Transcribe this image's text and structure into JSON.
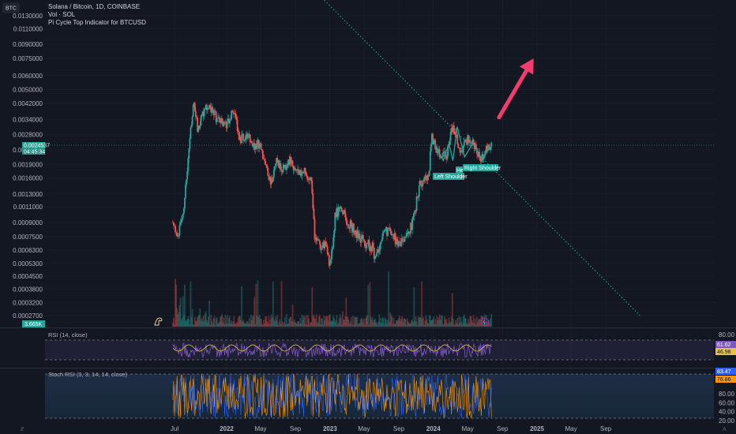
{
  "symbol_badge": "BTC",
  "legend": {
    "line1": "Solana / Bitcoin, 1D, COINBASE",
    "line2": "Vol · SOL",
    "line3": "Pi Cycle Top Indicator for BTCUSD"
  },
  "price_badges": {
    "current_price": "0.0024537",
    "countdown": "04:45:34",
    "volume": "3.665K"
  },
  "rsi_pane": {
    "title": "RSI (14, close)",
    "value_rsi": "61.62",
    "value_ma": "46.98",
    "colors": {
      "rsi": "#7e57c2",
      "ma": "#e6c050"
    }
  },
  "stoch_pane": {
    "title": "Stoch RSI (3, 3, 14, 14, close)",
    "value_k": "83.47",
    "value_d": "76.86",
    "colors": {
      "k": "#2962ff",
      "d": "#ff9800"
    }
  },
  "pattern_labels": {
    "left": "Left Shoulder",
    "head": "He",
    "right": "Right Shoulder"
  },
  "colors": {
    "background": "#131722",
    "up": "#26a69a",
    "down": "#ef5350",
    "trendline": "#26a69a",
    "arrow": "#f23c6e",
    "pattern": "#26a69a",
    "grid": "#1e222d"
  },
  "chart_data": {
    "type": "candlestick",
    "title": "Solana / Bitcoin, 1D, COINBASE",
    "y_scale": "log",
    "y_ticks": [
      "0.0130000",
      "0.0110000",
      "0.0090000",
      "0.0075000",
      "0.0060000",
      "0.0050000",
      "0.0042000",
      "0.0034000",
      "0.0028000",
      "0.0023000",
      "0.0019000",
      "0.0016000",
      "0.0013000",
      "0.0011000",
      "0.0009000",
      "0.0007500",
      "0.0006300",
      "0.0005300",
      "0.0004500",
      "0.0003800",
      "0.0003200",
      "0.0002700"
    ],
    "x_ticks": [
      "Jul",
      "2022",
      "May",
      "Sep",
      "2023",
      "May",
      "Sep",
      "2024",
      "May",
      "Sep",
      "2025",
      "May",
      "Sep"
    ],
    "price_path": [
      [
        "2021-06-25",
        0.0009
      ],
      [
        "2021-07-15",
        0.00075
      ],
      [
        "2021-08-05",
        0.0012
      ],
      [
        "2021-08-25",
        0.0028
      ],
      [
        "2021-09-07",
        0.0044
      ],
      [
        "2021-09-20",
        0.003
      ],
      [
        "2021-10-10",
        0.0038
      ],
      [
        "2021-11-05",
        0.004
      ],
      [
        "2021-12-01",
        0.0034
      ],
      [
        "2022-01-01",
        0.0032
      ],
      [
        "2022-01-25",
        0.004
      ],
      [
        "2022-02-15",
        0.0026
      ],
      [
        "2022-03-20",
        0.0028
      ],
      [
        "2022-04-10",
        0.0023
      ],
      [
        "2022-04-30",
        0.0026
      ],
      [
        "2022-05-15",
        0.0019
      ],
      [
        "2022-06-10",
        0.0015
      ],
      [
        "2022-06-25",
        0.002
      ],
      [
        "2022-07-20",
        0.0018
      ],
      [
        "2022-08-15",
        0.002
      ],
      [
        "2022-09-10",
        0.0017
      ],
      [
        "2022-10-05",
        0.0017
      ],
      [
        "2022-10-28",
        0.0016
      ],
      [
        "2022-11-09",
        0.00072
      ],
      [
        "2022-11-25",
        0.00068
      ],
      [
        "2022-12-20",
        0.00065
      ],
      [
        "2023-01-01",
        0.0005
      ],
      [
        "2023-01-20",
        0.001
      ],
      [
        "2023-02-10",
        0.0011
      ],
      [
        "2023-03-05",
        0.0009
      ],
      [
        "2023-04-01",
        0.0008
      ],
      [
        "2023-05-01",
        0.0007
      ],
      [
        "2023-06-01",
        0.00065
      ],
      [
        "2023-06-12",
        0.00055
      ],
      [
        "2023-07-10",
        0.0008
      ],
      [
        "2023-08-05",
        0.00078
      ],
      [
        "2023-09-01",
        0.00068
      ],
      [
        "2023-09-20",
        0.0007
      ],
      [
        "2023-10-20",
        0.0009
      ],
      [
        "2023-11-15",
        0.0015
      ],
      [
        "2023-12-15",
        0.0016
      ],
      [
        "2023-12-25",
        0.0027
      ],
      [
        "2024-01-20",
        0.0022
      ],
      [
        "2024-02-15",
        0.0021
      ],
      [
        "2024-03-10",
        0.0031
      ],
      [
        "2024-04-05",
        0.0022
      ],
      [
        "2024-05-01",
        0.0027
      ],
      [
        "2024-06-01",
        0.0024
      ],
      [
        "2024-06-15",
        0.002
      ],
      [
        "2024-07-05",
        0.0023
      ],
      [
        "2024-07-25",
        0.00245
      ]
    ],
    "trendline": [
      [
        "2022-10-10",
        0.02
      ],
      [
        "2025-12-31",
        0.00027
      ]
    ],
    "arrow": {
      "from": [
        "2024-08-20",
        0.0035
      ],
      "to": [
        "2024-12-20",
        0.0075
      ]
    },
    "pattern_points": [
      [
        "2023-12-25",
        0.0027
      ],
      [
        "2024-02-05",
        0.002
      ],
      [
        "2024-02-25",
        0.0025
      ],
      [
        "2024-03-10",
        0.002
      ],
      [
        "2024-03-25",
        0.0031
      ],
      [
        "2024-04-20",
        0.0021
      ],
      [
        "2024-05-20",
        0.0025
      ],
      [
        "2024-06-20",
        0.00205
      ],
      [
        "2024-07-20",
        0.0024
      ]
    ],
    "rsi": {
      "levels": [
        80,
        20
      ],
      "current": 61.62,
      "ma": 46.98
    },
    "stoch_rsi": {
      "ticks": [
        "80.00",
        "60.00",
        "40.00",
        "20.00"
      ],
      "k": 83.47,
      "d": 76.86
    }
  }
}
